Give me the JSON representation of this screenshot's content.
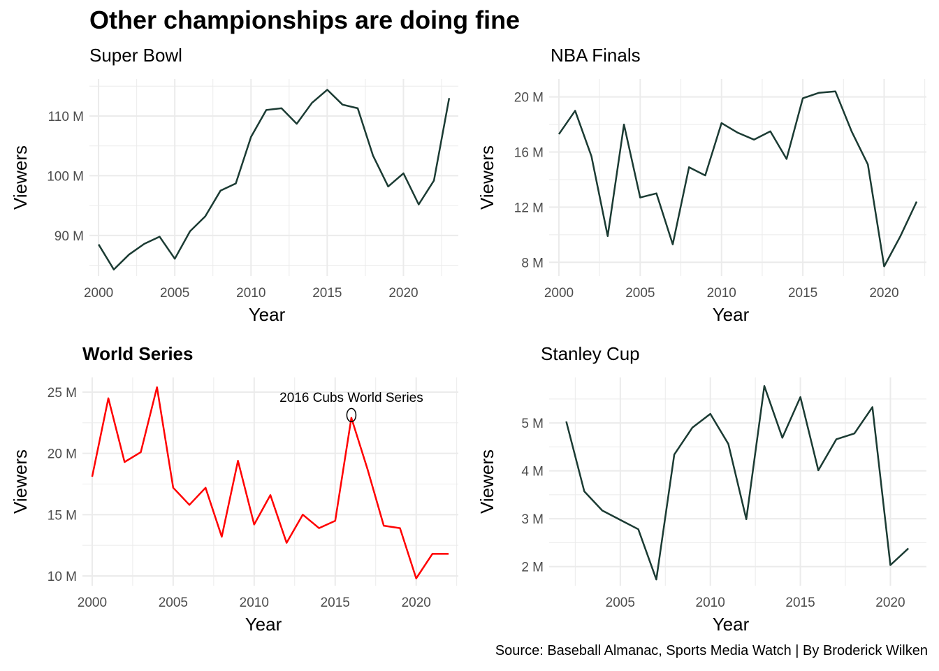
{
  "title": "Other championships are doing fine",
  "caption": "Source: Baseball Almanac, Sports Media Watch  | By Broderick Wilken",
  "chart_data": [
    {
      "type": "line",
      "title": "Super Bowl",
      "title_bold": false,
      "xlabel": "Year",
      "ylabel": "Viewers",
      "color": "#1b3b33",
      "xlim": [
        1999.4,
        2023.6
      ],
      "ylim": [
        83.2,
        116.2
      ],
      "xticks": [
        2000,
        2005,
        2010,
        2015,
        2020
      ],
      "xtick_labels": [
        "2000",
        "2005",
        "2010",
        "2015",
        "2020"
      ],
      "yticks": [
        90,
        100,
        110
      ],
      "ytick_labels": [
        "90 M",
        "100 M",
        "110 M"
      ],
      "x": [
        2000,
        2001,
        2002,
        2003,
        2004,
        2005,
        2006,
        2007,
        2008,
        2009,
        2010,
        2011,
        2012,
        2013,
        2014,
        2015,
        2016,
        2017,
        2018,
        2019,
        2020,
        2021,
        2022,
        2023
      ],
      "values": [
        88.5,
        84.3,
        86.8,
        88.6,
        89.8,
        86.1,
        90.7,
        93.2,
        97.5,
        98.7,
        106.5,
        111.0,
        111.3,
        108.7,
        112.2,
        114.4,
        111.9,
        111.3,
        103.4,
        98.2,
        100.4,
        95.2,
        99.2,
        113.0
      ]
    },
    {
      "type": "line",
      "title": "NBA Finals",
      "title_bold": false,
      "xlabel": "Year",
      "ylabel": "Viewers",
      "color": "#1b3b33",
      "xlim": [
        1999.4,
        2022.6
      ],
      "ylim": [
        7.0,
        21.3
      ],
      "xticks": [
        2000,
        2005,
        2010,
        2015,
        2020
      ],
      "xtick_labels": [
        "2000",
        "2005",
        "2010",
        "2015",
        "2020"
      ],
      "yticks": [
        8,
        12,
        16,
        20
      ],
      "ytick_labels": [
        "8 M",
        "12 M",
        "16 M",
        "20 M"
      ],
      "x": [
        2000,
        2001,
        2002,
        2003,
        2004,
        2005,
        2006,
        2007,
        2008,
        2009,
        2010,
        2011,
        2012,
        2013,
        2014,
        2015,
        2016,
        2017,
        2018,
        2019,
        2020,
        2021,
        2022
      ],
      "values": [
        17.3,
        19.0,
        15.7,
        9.9,
        18.0,
        12.7,
        13.0,
        9.3,
        14.9,
        14.3,
        18.1,
        17.4,
        16.9,
        17.5,
        15.5,
        19.9,
        20.3,
        20.4,
        17.5,
        15.1,
        7.7,
        9.9,
        12.4
      ]
    },
    {
      "type": "line",
      "title": "World Series",
      "title_bold": true,
      "xlabel": "Year",
      "ylabel": "Viewers",
      "color": "#ff0000",
      "xlim": [
        1999.4,
        2022.6
      ],
      "ylim": [
        9.2,
        26.2
      ],
      "xticks": [
        2000,
        2005,
        2010,
        2015,
        2020
      ],
      "xtick_labels": [
        "2000",
        "2005",
        "2010",
        "2015",
        "2020"
      ],
      "yticks": [
        10,
        15,
        20,
        25
      ],
      "ytick_labels": [
        "10 M",
        "15 M",
        "20 M",
        "25 M"
      ],
      "x": [
        2000,
        2001,
        2002,
        2003,
        2004,
        2005,
        2006,
        2007,
        2008,
        2009,
        2010,
        2011,
        2012,
        2013,
        2014,
        2015,
        2016,
        2017,
        2018,
        2019,
        2020,
        2021,
        2022
      ],
      "values": [
        18.1,
        24.5,
        19.3,
        20.1,
        25.4,
        17.2,
        15.8,
        17.2,
        13.2,
        19.4,
        14.2,
        16.6,
        12.7,
        15.0,
        13.9,
        14.5,
        22.9,
        18.7,
        14.1,
        13.9,
        9.8,
        11.8,
        11.8
      ],
      "annotation": {
        "text": "2016 Cubs World Series",
        "x": 2016,
        "y": 22.9
      }
    },
    {
      "type": "line",
      "title": "Stanley Cup",
      "title_bold": false,
      "xlabel": "Year",
      "ylabel": "Viewers",
      "color": "#1b3b33",
      "xlim": [
        2001.05,
        2022.0
      ],
      "ylim": [
        1.6,
        5.95
      ],
      "xticks": [
        2005,
        2010,
        2015,
        2020
      ],
      "xtick_labels": [
        "2005",
        "2010",
        "2015",
        "2020"
      ],
      "yticks": [
        2,
        3,
        4,
        5
      ],
      "ytick_labels": [
        "2 M",
        "3 M",
        "4 M",
        "5 M"
      ],
      "x": [
        2002,
        2003,
        2004,
        2006,
        2007,
        2008,
        2009,
        2010,
        2011,
        2012,
        2013,
        2014,
        2015,
        2016,
        2017,
        2018,
        2019,
        2020,
        2021
      ],
      "values": [
        5.03,
        3.57,
        3.17,
        2.78,
        1.73,
        4.34,
        4.9,
        5.19,
        4.56,
        2.99,
        5.77,
        4.69,
        5.54,
        4.01,
        4.66,
        4.78,
        5.33,
        2.03,
        2.38
      ]
    }
  ]
}
